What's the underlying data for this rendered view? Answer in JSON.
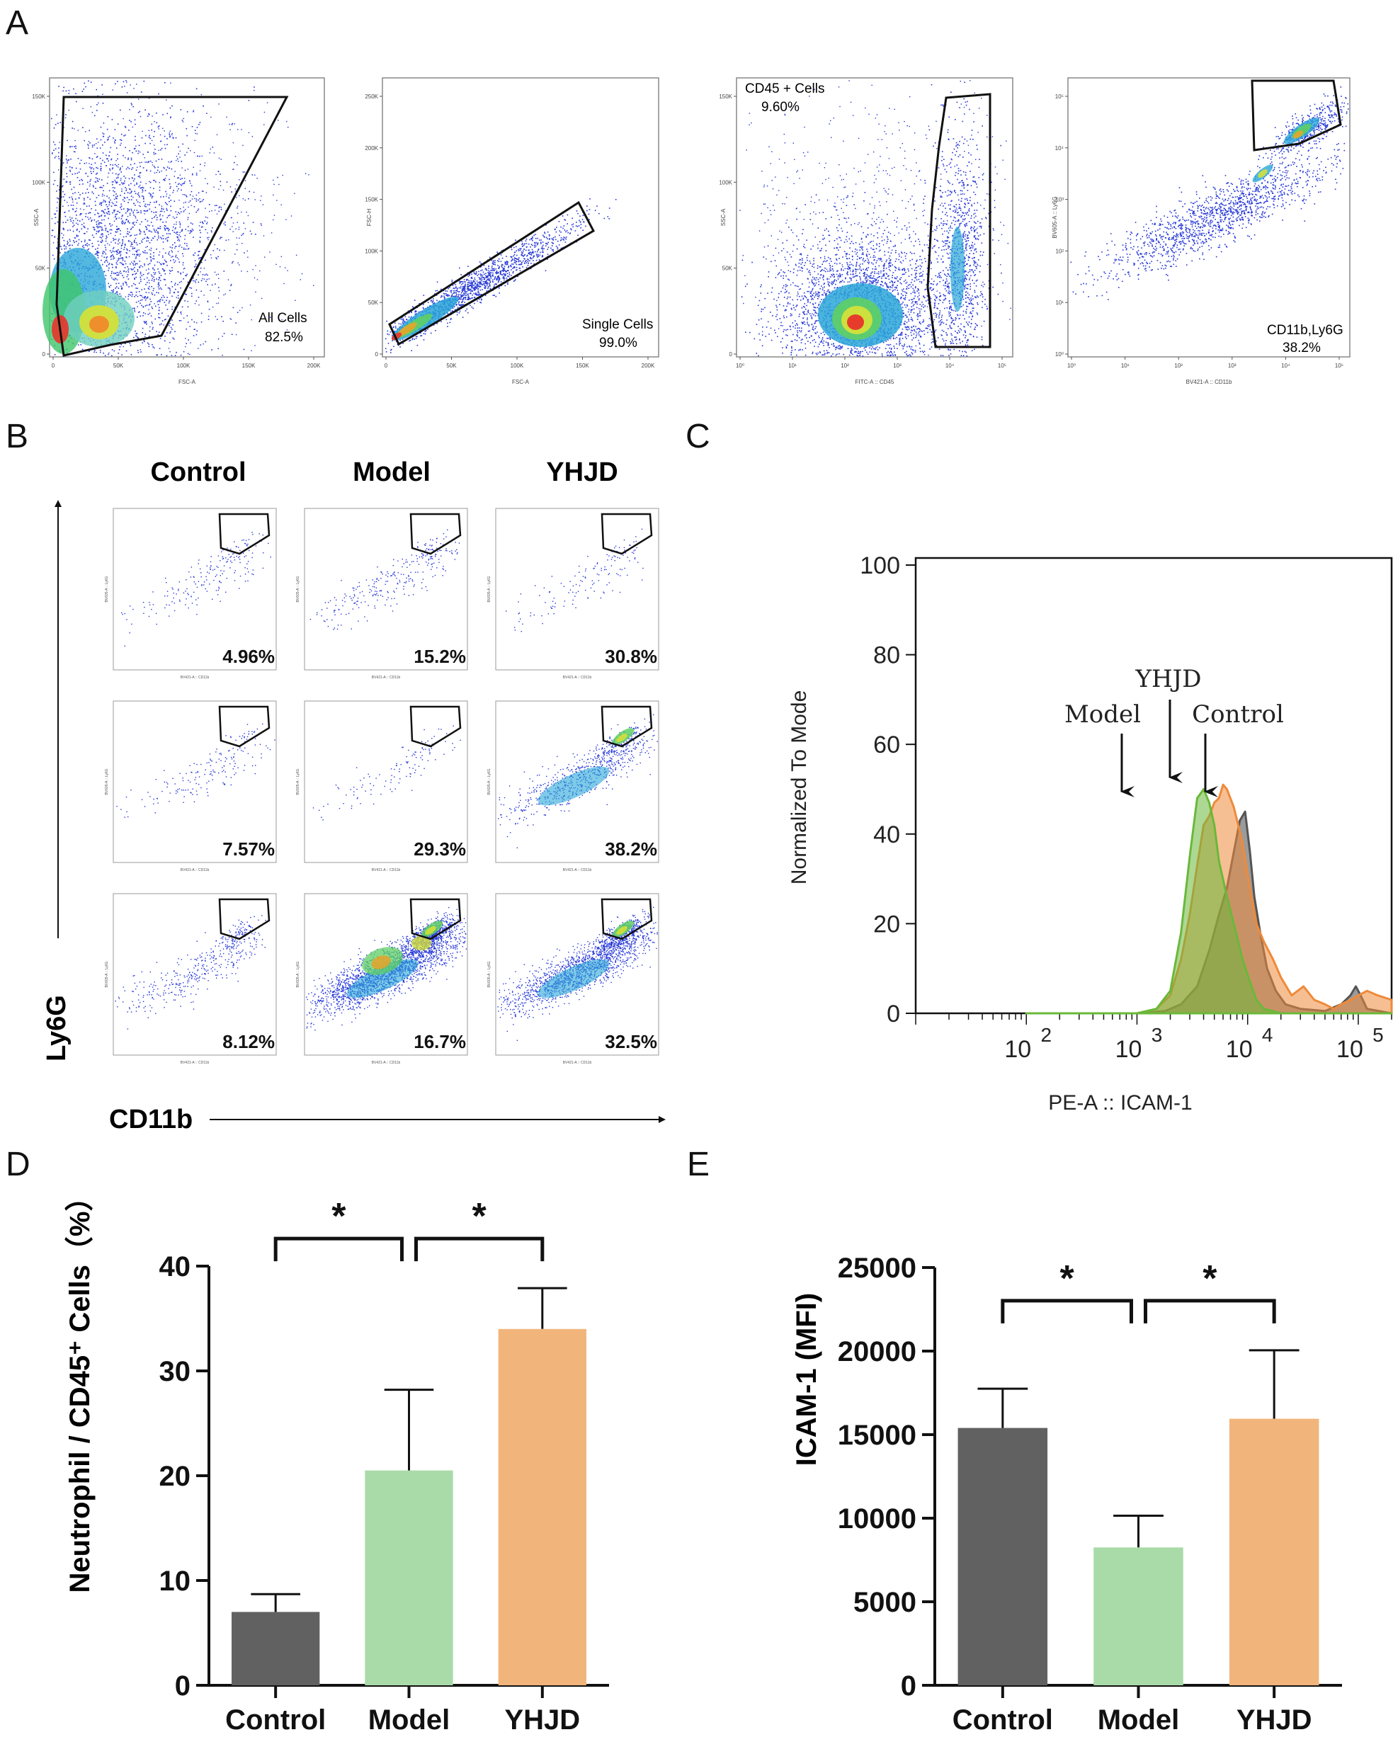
{
  "colors": {
    "control": "#616161",
    "model": "#a9dba9",
    "yhjd": "#f1b57c",
    "hist_control": "#8a8a8a",
    "hist_model": "#6ab83a",
    "hist_yhjd": "#ee8a3a",
    "gate": "#111111",
    "dot": "#2436d6"
  },
  "panel_letters": {
    "a": "A",
    "b": "B",
    "c": "C",
    "d": "D",
    "e": "E"
  },
  "panel_a": {
    "plots": [
      {
        "gate_label": "All Cells",
        "gate_value": "82.5%",
        "xlabel": "FSC-A",
        "ylabel": "SSC-A",
        "scale": "linear",
        "xticks": [
          "0",
          "50K",
          "100K",
          "150K",
          "200K"
        ],
        "yticks": [
          "0",
          "50K",
          "100K",
          "150K"
        ]
      },
      {
        "gate_label": "Single Cells",
        "gate_value": "99.0%",
        "xlabel": "FSC-A",
        "ylabel": "FSC-H",
        "scale": "linear",
        "xticks": [
          "0",
          "50K",
          "100K",
          "150K",
          "200K"
        ],
        "yticks": [
          "0",
          "50K",
          "100K",
          "150K",
          "200K",
          "250K"
        ]
      },
      {
        "gate_label": "CD45 + Cells",
        "gate_value": "9.60%",
        "xlabel": "FITC-A :: CD45",
        "ylabel": "SSC-A",
        "scale": "log",
        "xticks": [
          "10⁰",
          "10¹",
          "10²",
          "10³",
          "10⁴",
          "10⁵"
        ],
        "yticks": [
          "0",
          "50K",
          "100K",
          "150K"
        ]
      },
      {
        "gate_label": "CD11b,Ly6G",
        "gate_value": "38.2%",
        "xlabel": "BV421-A :: CD11b",
        "ylabel": "BV605-A :: Ly6G",
        "scale": "log",
        "xticks": [
          "10⁰",
          "10¹",
          "10²",
          "10³",
          "10⁴",
          "10⁵"
        ],
        "yticks": [
          "10⁰",
          "10¹",
          "10²",
          "10³",
          "10⁴",
          "10⁵"
        ]
      }
    ]
  },
  "panel_b": {
    "columns": [
      "Control",
      "Model",
      "YHJD"
    ],
    "percentages": [
      [
        "4.96%",
        "15.2%",
        "30.8%"
      ],
      [
        "7.57%",
        "29.3%",
        "38.2%"
      ],
      [
        "8.12%",
        "16.7%",
        "32.5%"
      ]
    ],
    "y_axis": "Ly6G",
    "x_axis": "CD11b",
    "mini_xlabel": "BV421-A :: CD11b",
    "mini_ylabel": "BV605-A :: Ly6G"
  },
  "chart_data": [
    {
      "panel": "C",
      "type": "area",
      "title": "",
      "xlabel": "PE-A :: ICAM-1",
      "ylabel": "Normalized To Mode",
      "xscale": "log",
      "xlim": [
        10,
        200000
      ],
      "ylim": [
        0,
        100
      ],
      "yticks": [
        0,
        20,
        40,
        60,
        80,
        100
      ],
      "xtick_bases": [
        "10",
        "10",
        "10",
        "10"
      ],
      "xtick_exponents": [
        "2",
        "3",
        "4",
        "5"
      ],
      "annotations": [
        "Model",
        "YHJD",
        "Control"
      ],
      "series": [
        {
          "name": "Control",
          "x": [
            100,
            1000,
            1800,
            2500,
            3500,
            4500,
            5500,
            6500,
            7500,
            8500,
            9500,
            10500,
            11500,
            13000,
            15000,
            18000,
            22000,
            30000,
            50000,
            70000,
            85000,
            95000,
            105000,
            120000,
            200000
          ],
          "y": [
            0,
            0,
            0.5,
            2,
            6,
            14,
            22,
            28,
            36,
            43,
            45,
            36,
            26,
            18,
            10,
            5,
            2,
            1,
            0.5,
            2,
            4,
            6,
            4,
            1,
            0
          ]
        },
        {
          "name": "Model",
          "x": [
            100,
            1000,
            1500,
            2000,
            2500,
            3000,
            3500,
            4000,
            4500,
            5000,
            5500,
            6500,
            7500,
            9000,
            10500,
            12000,
            14000,
            17000,
            20000,
            25000,
            30000,
            200000
          ],
          "y": [
            0,
            0,
            1,
            5,
            18,
            35,
            48,
            50,
            47,
            42,
            34,
            26,
            20,
            12,
            7,
            3,
            1,
            0.5,
            0,
            0,
            0,
            0
          ]
        },
        {
          "name": "YHJD",
          "x": [
            100,
            1000,
            1500,
            2000,
            2500,
            3000,
            3500,
            4000,
            4500,
            5000,
            5500,
            6000,
            6500,
            7500,
            9000,
            10500,
            12000,
            14000,
            17000,
            20000,
            25000,
            32000,
            40000,
            50000,
            60000,
            70000,
            85000,
            100000,
            120000,
            150000,
            200000
          ],
          "y": [
            0,
            0,
            1,
            4,
            12,
            22,
            33,
            42,
            44,
            47,
            48,
            51,
            50,
            46,
            38,
            28,
            20,
            16,
            12,
            8,
            4,
            6,
            3,
            2,
            1,
            2,
            3,
            4,
            5,
            4,
            3
          ]
        }
      ]
    },
    {
      "panel": "D",
      "type": "bar",
      "title": "",
      "xlabel": "",
      "ylabel": "Neutrophil / CD45⁺ Cells（%）",
      "ylim": [
        0,
        40
      ],
      "yticks": [
        0,
        10,
        20,
        30,
        40
      ],
      "categories": [
        "Control",
        "Model",
        "YHJD"
      ],
      "values": [
        7,
        20.5,
        34
      ],
      "errors": [
        1.7,
        7.7,
        3.9
      ],
      "significance": [
        {
          "from": 0,
          "to": 1,
          "label": "*"
        },
        {
          "from": 1,
          "to": 2,
          "label": "*"
        }
      ]
    },
    {
      "panel": "E",
      "type": "bar",
      "title": "",
      "xlabel": "",
      "ylabel": "ICAM-1 (MFI)",
      "ylim": [
        0,
        25000
      ],
      "yticks": [
        0,
        5000,
        10000,
        15000,
        20000,
        25000
      ],
      "categories": [
        "Control",
        "Model",
        "YHJD"
      ],
      "values": [
        15400,
        8250,
        15950
      ],
      "errors": [
        2350,
        1900,
        4100
      ],
      "significance": [
        {
          "from": 0,
          "to": 1,
          "label": "*"
        },
        {
          "from": 1,
          "to": 2,
          "label": "*"
        }
      ]
    }
  ]
}
